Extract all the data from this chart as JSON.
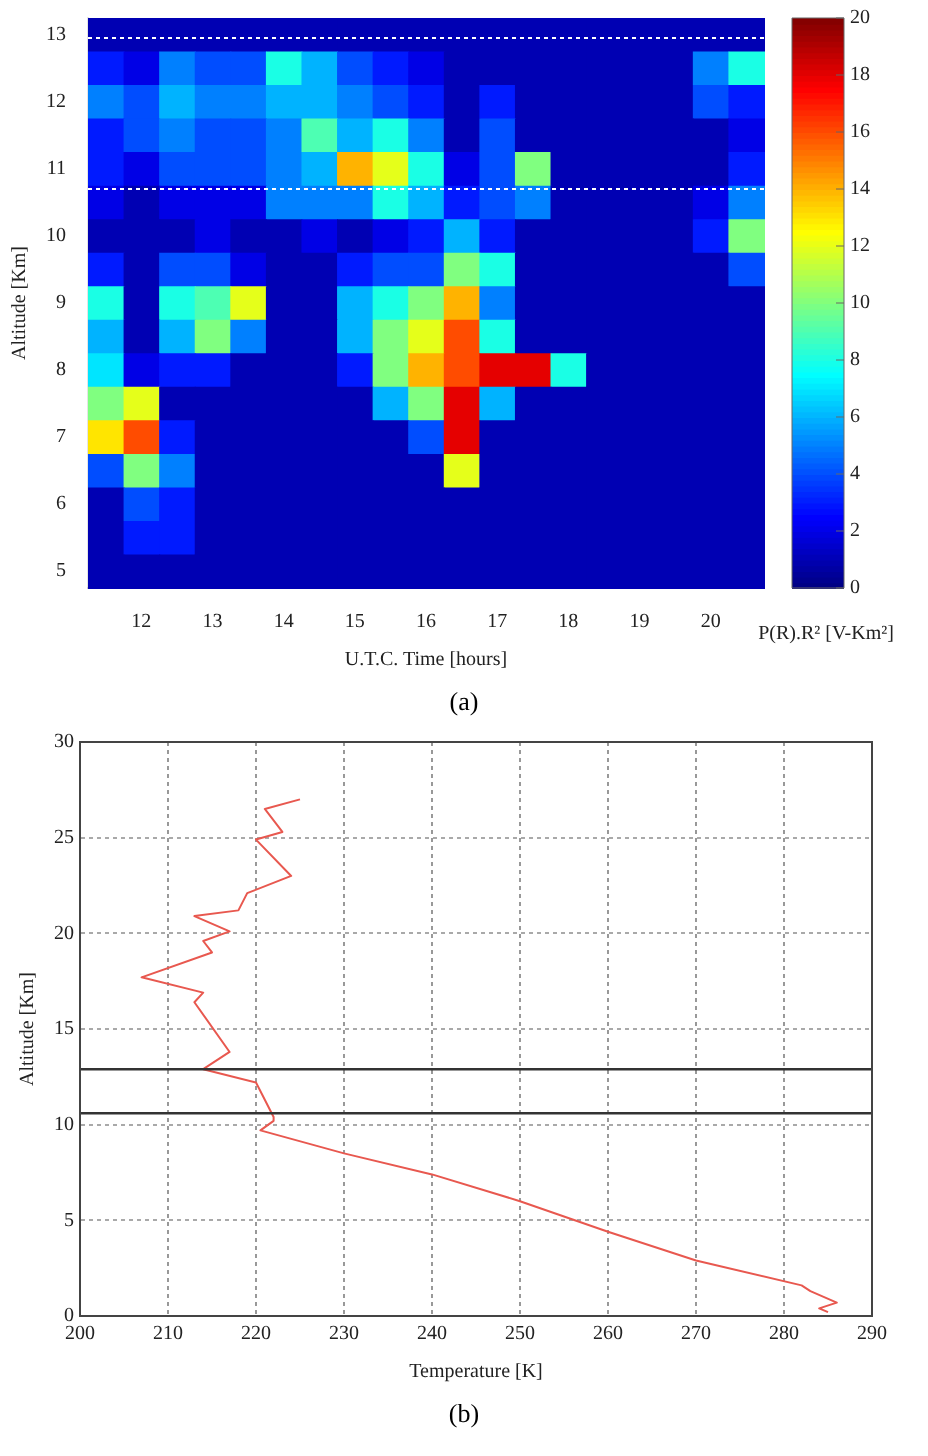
{
  "chart_data": [
    {
      "type": "heatmap",
      "xlabel": "U.T.C. Time [hours]",
      "ylabel": "Altitude [Km]",
      "clabel": "P(R).R² [V-Km²]",
      "categories": [
        null,
        "12",
        null,
        "13",
        null,
        "14",
        null,
        "15",
        null,
        "16",
        null,
        "17",
        null,
        "18",
        null,
        "19",
        null,
        "20",
        null
      ],
      "y_categories": [
        "13",
        null,
        "12",
        null,
        "11",
        null,
        "10",
        null,
        "9",
        null,
        "8",
        null,
        "7",
        null,
        "6",
        null,
        "5"
      ],
      "cells": [
        [
          1,
          1,
          1,
          1,
          1,
          1,
          1,
          1,
          1,
          1,
          1,
          1,
          1,
          1,
          1,
          1,
          1,
          1,
          1
        ],
        [
          3,
          2,
          5,
          4,
          4,
          8,
          6,
          4,
          3,
          2,
          1,
          1,
          1,
          1,
          1,
          1,
          1,
          5,
          8
        ],
        [
          5,
          4,
          6,
          5,
          5,
          6,
          6,
          5,
          4,
          3,
          1,
          3,
          1,
          1,
          1,
          1,
          1,
          4,
          3
        ],
        [
          3,
          4,
          5,
          4,
          4,
          5,
          9,
          6,
          8,
          5,
          1,
          4,
          1,
          1,
          1,
          1,
          1,
          1,
          2
        ],
        [
          3,
          2,
          4,
          4,
          4,
          5,
          6,
          14,
          12,
          8,
          2,
          4,
          10,
          1,
          1,
          1,
          1,
          1,
          3
        ],
        [
          2,
          1,
          2,
          2,
          2,
          5,
          5,
          5,
          8,
          6,
          3,
          4,
          5,
          1,
          1,
          1,
          1,
          2,
          5
        ],
        [
          1,
          1,
          1,
          2,
          1,
          1,
          2,
          1,
          2,
          3,
          6,
          3,
          1,
          1,
          1,
          1,
          1,
          3,
          10
        ],
        [
          3,
          1,
          4,
          4,
          2,
          1,
          1,
          3,
          4,
          4,
          10,
          8,
          1,
          1,
          1,
          1,
          1,
          1,
          4
        ],
        [
          8,
          1,
          8,
          9,
          12,
          1,
          1,
          6,
          8,
          10,
          14,
          5,
          1,
          1,
          1,
          1,
          1,
          1,
          1
        ],
        [
          6,
          1,
          6,
          10,
          5,
          1,
          1,
          6,
          10,
          12,
          16,
          8,
          1,
          1,
          1,
          1,
          1,
          1,
          1
        ],
        [
          7,
          2,
          3,
          3,
          1,
          1,
          1,
          3,
          10,
          14,
          16,
          18,
          18,
          8,
          1,
          1,
          1,
          1,
          1
        ],
        [
          10,
          12,
          1,
          1,
          1,
          1,
          1,
          1,
          6,
          10,
          18,
          6,
          1,
          1,
          1,
          1,
          1,
          1,
          1
        ],
        [
          13,
          16,
          3,
          1,
          1,
          1,
          1,
          1,
          1,
          4,
          18,
          1,
          1,
          1,
          1,
          1,
          1,
          1,
          1
        ],
        [
          4,
          10,
          5,
          1,
          1,
          1,
          1,
          1,
          1,
          1,
          12,
          1,
          1,
          1,
          1,
          1,
          1,
          1,
          1
        ],
        [
          1,
          4,
          3,
          1,
          1,
          1,
          1,
          1,
          1,
          1,
          1,
          1,
          1,
          1,
          1,
          1,
          1,
          1,
          1
        ],
        [
          1,
          3,
          3,
          1,
          1,
          1,
          1,
          1,
          1,
          1,
          1,
          1,
          1,
          1,
          1,
          1,
          1,
          1,
          1
        ],
        [
          1,
          1,
          1,
          1,
          1,
          1,
          1,
          1,
          1,
          1,
          1,
          1,
          1,
          1,
          1,
          1,
          1,
          1,
          1
        ]
      ],
      "clim": [
        0,
        20
      ],
      "cticks": [
        0,
        2,
        4,
        6,
        8,
        10,
        12,
        14,
        16,
        18,
        20
      ],
      "annotations": [
        "(a)"
      ]
    },
    {
      "type": "line",
      "xlabel": "Temperature [K]",
      "ylabel": "Altitude [Km]",
      "x": [
        285,
        284,
        286,
        283,
        282,
        270,
        260,
        250,
        240,
        230,
        220.5,
        222,
        222,
        220,
        214,
        217,
        213,
        214,
        207,
        215,
        214,
        217,
        213,
        218,
        219,
        224,
        220,
        223,
        221,
        225
      ],
      "values": [
        0.2,
        0.4,
        0.7,
        1.3,
        1.6,
        2.9,
        4.4,
        6.0,
        7.4,
        8.5,
        9.7,
        10.2,
        10.4,
        12.2,
        12.9,
        13.8,
        16.4,
        16.9,
        17.7,
        19.0,
        19.6,
        20.1,
        20.9,
        21.2,
        22.1,
        23.0,
        24.9,
        25.3,
        26.5,
        27.0
      ],
      "color": "#e8584f",
      "marker": "none",
      "line_style": "solid",
      "xlim": [
        200,
        290
      ],
      "xticks": [
        200,
        210,
        220,
        230,
        240,
        250,
        260,
        270,
        280,
        290
      ],
      "ylim": [
        0,
        30
      ],
      "yticks": [
        0,
        5,
        10,
        15,
        20,
        25,
        30
      ],
      "grid": true,
      "ref_lines": [
        {
          "axis": "y",
          "value": 10.6,
          "color": "#333333",
          "line_style": "solid"
        },
        {
          "axis": "y",
          "value": 12.9,
          "color": "#333333",
          "line_style": "solid"
        }
      ],
      "annotations": [
        "(b)"
      ]
    }
  ]
}
